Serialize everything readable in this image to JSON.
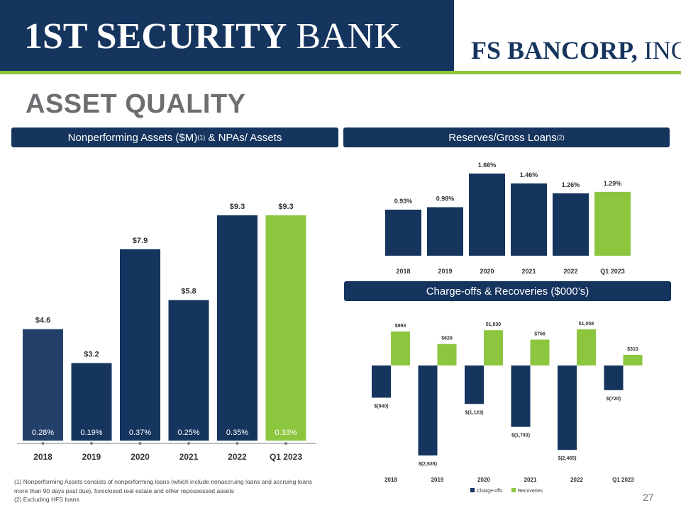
{
  "header": {
    "bank_name_first": "1ST SECURITY",
    "bank_name_second": "BANK",
    "parent_name": "FS BANCORP,",
    "parent_suffix": "INC."
  },
  "page_title": "ASSET QUALITY",
  "sections": {
    "npa_title": "Nonperforming Assets ($M)",
    "npa_title_sup": "(1)",
    "npa_title_tail": " & NPAs/ Assets",
    "reserves_title": "Reserves/Gross Loans",
    "reserves_title_sup": "(2)",
    "chargeoffs_title": "Charge-offs & Recoveries ($000’s)"
  },
  "colors": {
    "navy": "#15345e",
    "green": "#8cc63f",
    "title_gray": "#6d6e71"
  },
  "chart_data": [
    {
      "type": "bar",
      "categories": [
        "2018",
        "2019",
        "2020",
        "2021",
        "2022",
        "Q1 2023"
      ],
      "values": [
        4.6,
        3.2,
        7.9,
        5.8,
        9.3,
        9.3
      ],
      "value_labels": [
        "$4.6",
        "$3.2",
        "$7.9",
        "$5.8",
        "$9.3",
        "$9.3"
      ],
      "secondary_labels": [
        "0.28%",
        "0.19%",
        "0.37%",
        "0.25%",
        "0.35%",
        "0.33%"
      ],
      "highlight_last": true,
      "ylim": [
        0,
        10
      ]
    },
    {
      "type": "bar",
      "categories": [
        "2018",
        "2019",
        "2020",
        "2021",
        "2022",
        "Q1 2023"
      ],
      "values": [
        0.93,
        0.98,
        1.66,
        1.46,
        1.26,
        1.29
      ],
      "value_labels": [
        "0.93%",
        "0.98%",
        "1.66%",
        "1.46%",
        "1.26%",
        "1.29%"
      ],
      "highlight_last": true,
      "ylim": [
        0,
        1.7
      ]
    },
    {
      "type": "bar",
      "categories": [
        "2018",
        "2019",
        "2020",
        "2021",
        "2022",
        "Q1 2023"
      ],
      "series": [
        {
          "name": "Charge-offs",
          "values": [
            -940,
            -2628,
            -1123,
            -1793,
            -2465,
            -720
          ],
          "labels": [
            "$(940)",
            "$(2,628)",
            "$(1,123)",
            "$(1,793)",
            "$(2,465)",
            "$(720)"
          ]
        },
        {
          "name": "Recoveries",
          "values": [
            993,
            628,
            1030,
            756,
            1058,
            310
          ],
          "labels": [
            "$993",
            "$628",
            "$1,030",
            "$756",
            "$1,058",
            "$310"
          ]
        }
      ],
      "ylim": [
        -2700,
        1100
      ]
    }
  ],
  "footnotes": [
    "(1) Nonperforming Assets consists of nonperforming loans (which include nonaccruing loans and accruing loans more than 90 days past due), foreclosed real estate and other repossessed assets",
    "(2) Excluding HFS loans"
  ],
  "page_number": "27"
}
